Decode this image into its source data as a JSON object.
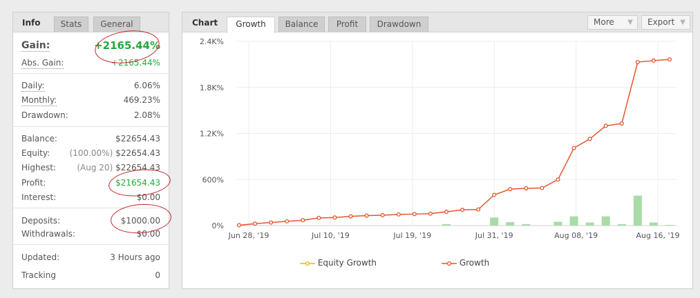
{
  "info": {
    "tabs": [
      {
        "label": "Info"
      },
      {
        "label": "Stats"
      },
      {
        "label": "General"
      }
    ],
    "gain": {
      "label": "Gain:",
      "value": "+2165.44%"
    },
    "abs_gain": {
      "label": "Abs. Gain:",
      "value": "+2165.44%"
    },
    "daily": {
      "label": "Daily:",
      "value": "6.06%"
    },
    "monthly": {
      "label": "Monthly:",
      "value": "469.23%"
    },
    "drawdown": {
      "label": "Drawdown:",
      "value": "2.08%"
    },
    "balance": {
      "label": "Balance:",
      "value": "$22654.43"
    },
    "equity": {
      "label": "Equity:",
      "note": "(100.00%)",
      "value": "$22654.43"
    },
    "highest": {
      "label": "Highest:",
      "note": "(Aug 20)",
      "value": "$22654.43"
    },
    "profit": {
      "label": "Profit:",
      "value": "$21654.43"
    },
    "interest": {
      "label": "Interest:",
      "value": "$0.00"
    },
    "deposits": {
      "label": "Deposits:",
      "value": "$1000.00"
    },
    "withdrawals": {
      "label": "Withdrawals:",
      "value": "$0.00"
    },
    "updated": {
      "label": "Updated:",
      "value": "3 Hours ago"
    },
    "tracking": {
      "label": "Tracking",
      "value": "0"
    }
  },
  "chart_panel": {
    "title": "Chart",
    "tabs": [
      {
        "label": "Growth"
      },
      {
        "label": "Balance"
      },
      {
        "label": "Profit"
      },
      {
        "label": "Drawdown"
      }
    ],
    "more_label": "More",
    "export_label": "Export",
    "caret_glyph": "▼",
    "legend": {
      "equity": "Equity Growth",
      "growth": "Growth"
    }
  },
  "colors": {
    "growth_line": "#e8532a",
    "equity_line": "#e8b800",
    "bars": "#a9dba8",
    "positive": "#23a839",
    "annotation": "#c1272d"
  },
  "chart_data": {
    "type": "line",
    "x_ticks": [
      "Jun 28, '19",
      "Jul 10, '19",
      "Jul 19, '19",
      "Jul 31, '19",
      "Aug 08, '19",
      "Aug 16, '19"
    ],
    "y_ticks": [
      "0%",
      "600%",
      "1.2K%",
      "1.8K%",
      "2.4K%"
    ],
    "ylim": [
      0,
      2400
    ],
    "grid": true,
    "legend_position": "bottom",
    "series": [
      {
        "name": "Growth",
        "type": "line",
        "values": [
          5,
          25,
          40,
          55,
          70,
          100,
          105,
          120,
          130,
          135,
          145,
          150,
          155,
          180,
          205,
          210,
          400,
          475,
          485,
          490,
          600,
          1010,
          1130,
          1300,
          1330,
          2130,
          2150,
          2165
        ]
      },
      {
        "name": "Equity Growth",
        "type": "line",
        "values": []
      },
      {
        "name": "daily",
        "type": "bar",
        "values": [
          0,
          0,
          0,
          0,
          0,
          0,
          0,
          0,
          0,
          0,
          0,
          0,
          0,
          20,
          0,
          0,
          105,
          45,
          20,
          0,
          50,
          120,
          40,
          120,
          20,
          390,
          40,
          5
        ]
      }
    ]
  }
}
